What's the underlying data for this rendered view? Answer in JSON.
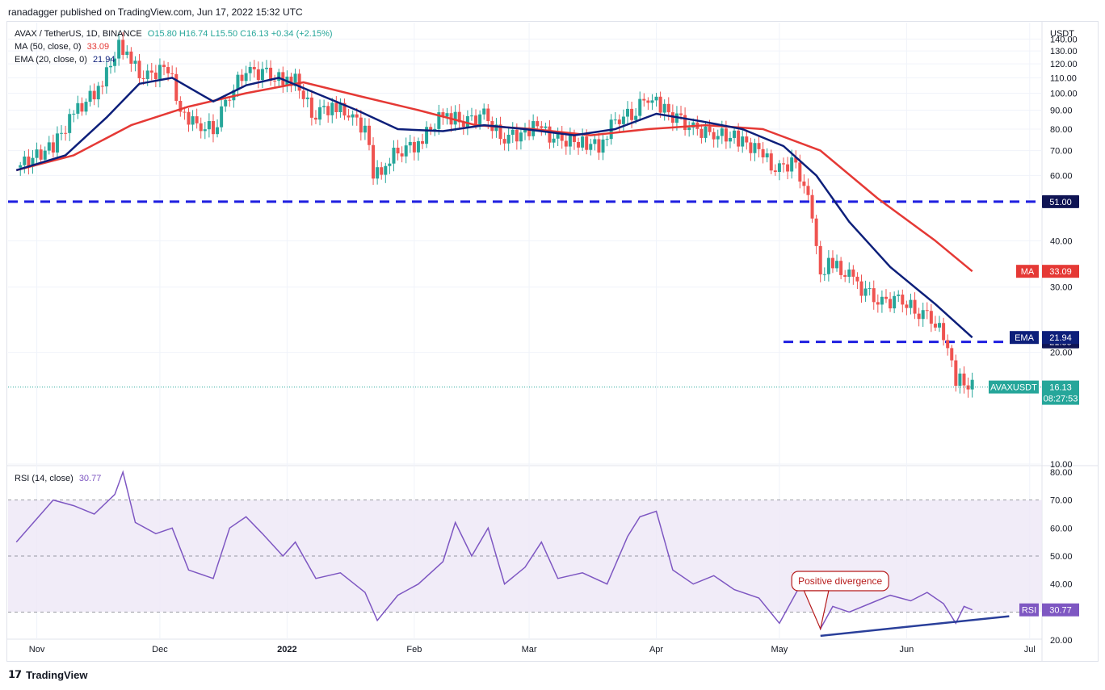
{
  "publisher_line": "ranadagger published on TradingView.com, Jun 17, 2022 15:32 UTC",
  "legend": {
    "symbol": "AVAX / TetherUS, 1D, BINANCE",
    "ohlc": "O15.80 H16.74 L15.50 C16.13 +0.34 (+2.15%)",
    "ma_label": "MA (50, close, 0)",
    "ma_value": "33.09",
    "ema_label": "EMA (20, close, 0)",
    "ema_value": "21.94",
    "rsi_label": "RSI (14, close)",
    "rsi_value": "30.77"
  },
  "footer": {
    "brand": "TradingView"
  },
  "colors": {
    "up": "#26a69a",
    "down": "#ef5350",
    "ma": "#e53935",
    "ema": "#0d1f7a",
    "level": "#1e1ee0",
    "rsi": "#7e57c2",
    "rsi_band": "#ede7f6",
    "price_tag": "#26a69a"
  },
  "chart_data": [
    {
      "type": "candlestick",
      "unit": "USDT",
      "x_ticks": [
        "Nov",
        "Dec",
        "2022",
        "Feb",
        "Mar",
        "Apr",
        "May",
        "Jun",
        "Jul"
      ],
      "y_ticks": [
        "10.00",
        "20.00",
        "30.00",
        "40.00",
        "60.00",
        "70.00",
        "80.00",
        "90.00",
        "100.00",
        "110.00",
        "120.00",
        "130.00",
        "140.00"
      ],
      "scale": "log",
      "ylim": [
        10,
        155
      ],
      "series": [
        {
          "name": "AVAX / TetherUS",
          "kind": "close",
          "last": 16.13,
          "label": "AVAXUSDT",
          "time_left": "08:27:53",
          "points": [
            [
              "2021-10-27",
              63
            ],
            [
              "2021-11-05",
              72
            ],
            [
              "2021-11-10",
              88
            ],
            [
              "2021-11-15",
              100
            ],
            [
              "2021-11-19",
              118
            ],
            [
              "2021-11-21",
              140
            ],
            [
              "2021-11-23",
              125
            ],
            [
              "2021-11-27",
              110
            ],
            [
              "2021-12-03",
              118
            ],
            [
              "2021-12-06",
              90
            ],
            [
              "2021-12-10",
              82
            ],
            [
              "2021-12-14",
              80
            ],
            [
              "2021-12-18",
              100
            ],
            [
              "2021-12-22",
              115
            ],
            [
              "2021-12-26",
              113
            ],
            [
              "2021-12-31",
              108
            ],
            [
              "2022-01-03",
              110
            ],
            [
              "2022-01-07",
              88
            ],
            [
              "2022-01-12",
              92
            ],
            [
              "2022-01-16",
              88
            ],
            [
              "2022-01-20",
              80
            ],
            [
              "2022-01-22",
              60
            ],
            [
              "2022-01-24",
              63
            ],
            [
              "2022-01-28",
              70
            ],
            [
              "2022-02-02",
              73
            ],
            [
              "2022-02-07",
              85
            ],
            [
              "2022-02-10",
              86
            ],
            [
              "2022-02-14",
              83
            ],
            [
              "2022-02-18",
              88
            ],
            [
              "2022-02-22",
              76
            ],
            [
              "2022-02-28",
              78
            ],
            [
              "2022-03-03",
              82
            ],
            [
              "2022-03-07",
              75
            ],
            [
              "2022-03-13",
              74
            ],
            [
              "2022-03-18",
              72
            ],
            [
              "2022-03-22",
              85
            ],
            [
              "2022-03-26",
              88
            ],
            [
              "2022-03-30",
              98
            ],
            [
              "2022-04-02",
              92
            ],
            [
              "2022-04-06",
              85
            ],
            [
              "2022-04-10",
              80
            ],
            [
              "2022-04-14",
              78
            ],
            [
              "2022-04-20",
              76
            ],
            [
              "2022-04-26",
              70
            ],
            [
              "2022-04-30",
              62
            ],
            [
              "2022-05-04",
              65
            ],
            [
              "2022-05-07",
              57
            ],
            [
              "2022-05-09",
              48
            ],
            [
              "2022-05-11",
              33
            ],
            [
              "2022-05-13",
              35
            ],
            [
              "2022-05-18",
              32
            ],
            [
              "2022-05-22",
              29
            ],
            [
              "2022-05-26",
              27
            ],
            [
              "2022-05-30",
              28
            ],
            [
              "2022-06-03",
              26
            ],
            [
              "2022-06-07",
              25
            ],
            [
              "2022-06-10",
              22
            ],
            [
              "2022-06-13",
              17
            ],
            [
              "2022-06-17",
              16.13
            ]
          ]
        },
        {
          "name": "MA (50, close, 0)",
          "last": 33.09,
          "points": [
            [
              "2021-10-27",
              62
            ],
            [
              "2021-11-10",
              68
            ],
            [
              "2021-11-24",
              82
            ],
            [
              "2021-12-08",
              92
            ],
            [
              "2021-12-22",
              100
            ],
            [
              "2022-01-05",
              107
            ],
            [
              "2022-01-19",
              98
            ],
            [
              "2022-02-02",
              90
            ],
            [
              "2022-02-16",
              82
            ],
            [
              "2022-03-02",
              80
            ],
            [
              "2022-03-16",
              77
            ],
            [
              "2022-03-30",
              80
            ],
            [
              "2022-04-13",
              82
            ],
            [
              "2022-04-27",
              80
            ],
            [
              "2022-05-11",
              70
            ],
            [
              "2022-05-25",
              52
            ],
            [
              "2022-06-08",
              40
            ],
            [
              "2022-06-17",
              33.09
            ]
          ]
        },
        {
          "name": "EMA (20, close, 0)",
          "last": 21.94,
          "points": [
            [
              "2021-10-27",
              62
            ],
            [
              "2021-11-08",
              68
            ],
            [
              "2021-11-18",
              86
            ],
            [
              "2021-11-26",
              106
            ],
            [
              "2021-12-04",
              110
            ],
            [
              "2021-12-14",
              95
            ],
            [
              "2021-12-22",
              105
            ],
            [
              "2021-12-30",
              110
            ],
            [
              "2022-01-08",
              100
            ],
            [
              "2022-01-18",
              90
            ],
            [
              "2022-01-28",
              80
            ],
            [
              "2022-02-08",
              79
            ],
            [
              "2022-02-18",
              82
            ],
            [
              "2022-02-28",
              80
            ],
            [
              "2022-03-12",
              77
            ],
            [
              "2022-03-22",
              80
            ],
            [
              "2022-04-01",
              88
            ],
            [
              "2022-04-12",
              84
            ],
            [
              "2022-04-22",
              80
            ],
            [
              "2022-05-02",
              72
            ],
            [
              "2022-05-10",
              60
            ],
            [
              "2022-05-18",
              45
            ],
            [
              "2022-05-28",
              34
            ],
            [
              "2022-06-08",
              27
            ],
            [
              "2022-06-17",
              21.94
            ]
          ]
        }
      ],
      "levels": [
        {
          "value": 51.0,
          "label": "51.00"
        },
        {
          "value": 21.35,
          "label": "21.35"
        }
      ],
      "price_labels": [
        {
          "tag": "MA",
          "value": "33.09"
        },
        {
          "tag": "EMA",
          "value": "21.94"
        }
      ]
    },
    {
      "type": "line",
      "name": "RSI (14, close)",
      "y_ticks": [
        "20.00",
        "30.00",
        "40.00",
        "50.00",
        "60.00",
        "70.00",
        "80.00"
      ],
      "ylim": [
        18,
        82
      ],
      "band": [
        30,
        70
      ],
      "midline": 50,
      "last": 30.77,
      "label": "RSI",
      "points": [
        [
          "2021-10-27",
          55
        ],
        [
          "2021-11-05",
          70
        ],
        [
          "2021-11-10",
          68
        ],
        [
          "2021-11-15",
          65
        ],
        [
          "2021-11-20",
          72
        ],
        [
          "2021-11-22",
          80
        ],
        [
          "2021-11-25",
          62
        ],
        [
          "2021-11-30",
          58
        ],
        [
          "2021-12-04",
          60
        ],
        [
          "2021-12-08",
          45
        ],
        [
          "2021-12-14",
          42
        ],
        [
          "2021-12-18",
          60
        ],
        [
          "2021-12-22",
          64
        ],
        [
          "2021-12-26",
          58
        ],
        [
          "2021-12-31",
          50
        ],
        [
          "2022-01-03",
          55
        ],
        [
          "2022-01-08",
          42
        ],
        [
          "2022-01-14",
          44
        ],
        [
          "2022-01-20",
          37
        ],
        [
          "2022-01-23",
          27
        ],
        [
          "2022-01-28",
          36
        ],
        [
          "2022-02-02",
          40
        ],
        [
          "2022-02-08",
          48
        ],
        [
          "2022-02-11",
          62
        ],
        [
          "2022-02-15",
          50
        ],
        [
          "2022-02-19",
          60
        ],
        [
          "2022-02-23",
          40
        ],
        [
          "2022-02-28",
          46
        ],
        [
          "2022-03-04",
          55
        ],
        [
          "2022-03-08",
          42
        ],
        [
          "2022-03-14",
          44
        ],
        [
          "2022-03-20",
          40
        ],
        [
          "2022-03-25",
          57
        ],
        [
          "2022-03-28",
          64
        ],
        [
          "2022-04-01",
          66
        ],
        [
          "2022-04-05",
          45
        ],
        [
          "2022-04-10",
          40
        ],
        [
          "2022-04-15",
          43
        ],
        [
          "2022-04-20",
          38
        ],
        [
          "2022-04-26",
          35
        ],
        [
          "2022-05-01",
          26
        ],
        [
          "2022-05-04",
          34
        ],
        [
          "2022-05-07",
          42
        ],
        [
          "2022-05-09",
          35
        ],
        [
          "2022-05-11",
          24
        ],
        [
          "2022-05-14",
          32
        ],
        [
          "2022-05-18",
          30
        ],
        [
          "2022-05-23",
          33
        ],
        [
          "2022-05-28",
          36
        ],
        [
          "2022-06-02",
          34
        ],
        [
          "2022-06-06",
          37
        ],
        [
          "2022-06-10",
          33
        ],
        [
          "2022-06-13",
          26
        ],
        [
          "2022-06-15",
          32
        ],
        [
          "2022-06-17",
          30.77
        ]
      ],
      "annotations": [
        {
          "text": "Positive divergence"
        }
      ],
      "trendline": [
        [
          "2022-05-11",
          21.5
        ],
        [
          "2022-06-26",
          28.5
        ]
      ]
    }
  ]
}
